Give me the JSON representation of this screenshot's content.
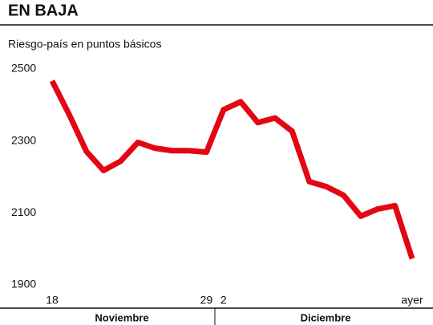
{
  "chart_data": {
    "type": "line",
    "title": "EN BAJA",
    "subtitle": "Riesgo-país en puntos básicos",
    "categories": [
      "18",
      null,
      null,
      null,
      null,
      null,
      null,
      null,
      null,
      "29",
      "2",
      null,
      null,
      null,
      null,
      null,
      null,
      null,
      null,
      null,
      null,
      "ayer"
    ],
    "months": [
      "Noviembre",
      "Diciembre"
    ],
    "series": [
      {
        "color": "#e30613",
        "values": [
          2467,
          2373,
          2271,
          2218,
          2244,
          2296,
          2280,
          2273,
          2273,
          2269,
          2387,
          2409,
          2351,
          2364,
          2327,
          2187,
          2173,
          2149,
          2091,
          2111,
          2120,
          1973
        ]
      }
    ],
    "ylim": [
      1900,
      2500
    ],
    "yticks": [
      1900,
      2100,
      2300,
      2500
    ],
    "grid": false
  }
}
